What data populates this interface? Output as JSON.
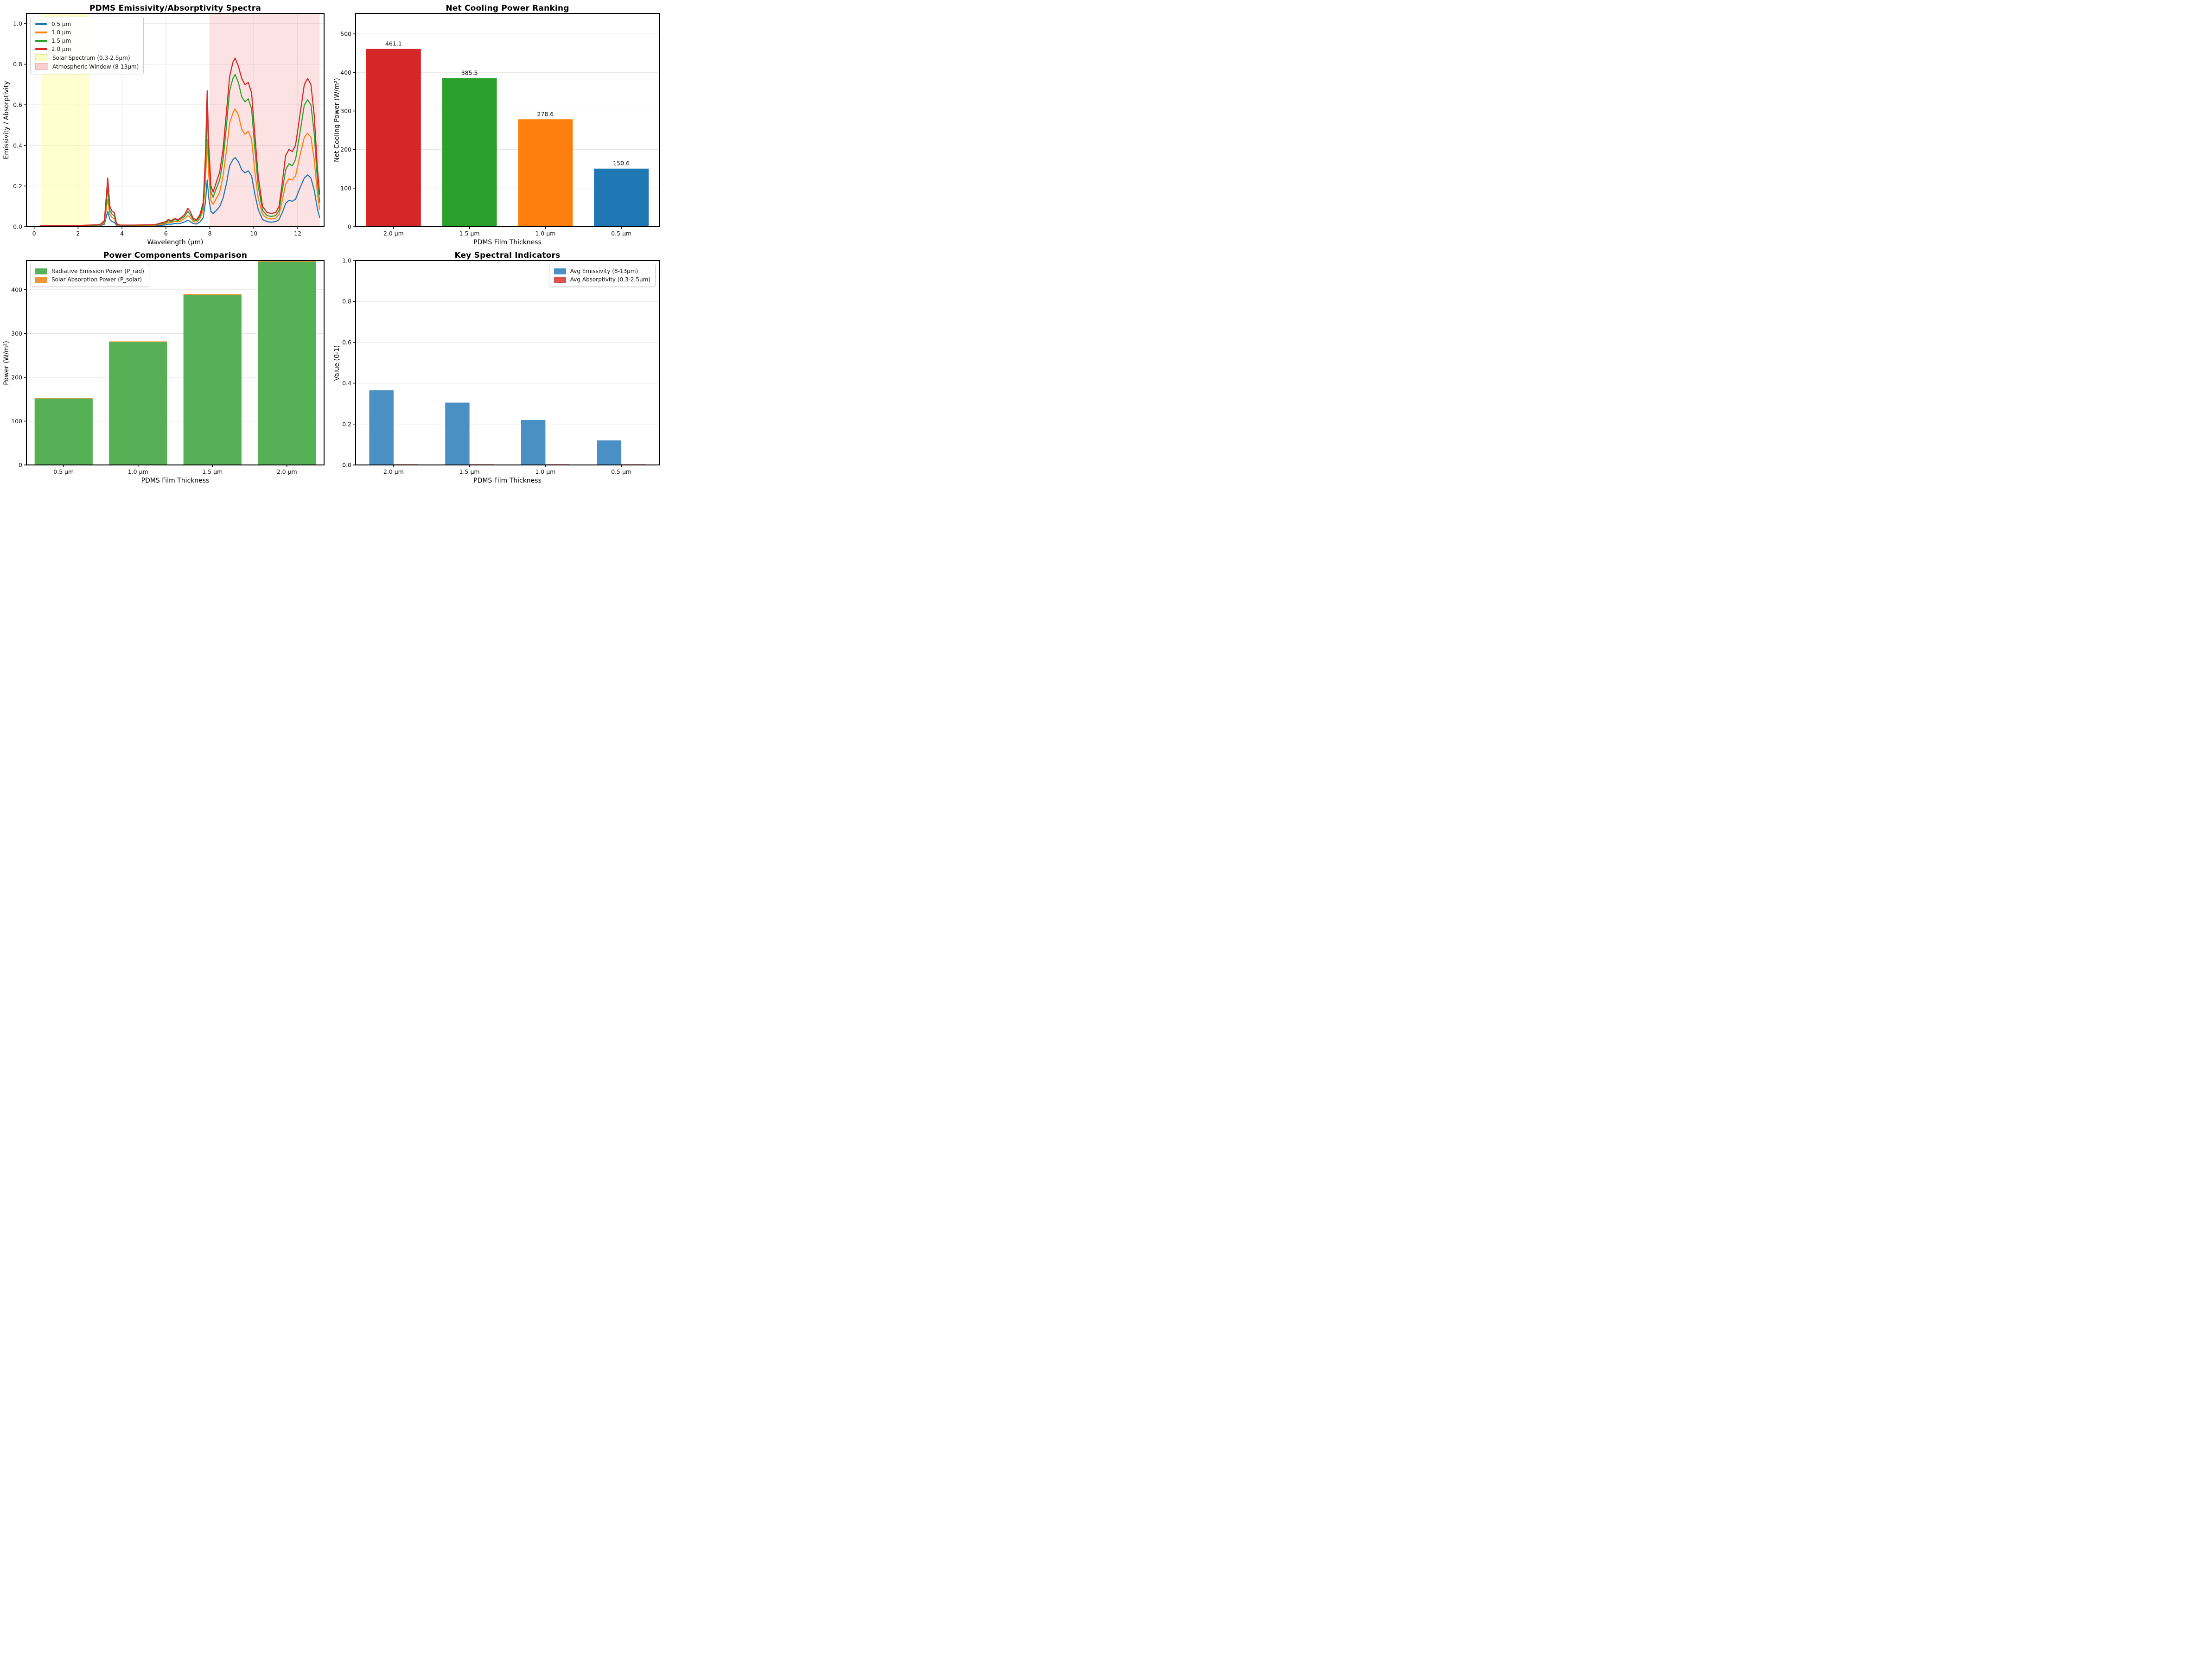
{
  "figure": {
    "background": "#ffffff",
    "accent_colors": {
      "tab_blue": "#1f77b4",
      "tab_orange": "#ff7f0e",
      "tab_green": "#2ca02c",
      "tab_red": "#d62728",
      "soft_green": "#55b056",
      "soft_orange": "#ee9537",
      "steel_blue": "#4a90c4",
      "soft_red": "#d9534f",
      "solar_band": "rgba(255,255,140,0.42)",
      "atmos_band": "rgba(236,93,93,0.18)"
    }
  },
  "chart_data": [
    {
      "id": "spectra",
      "type": "line",
      "title": "PDMS Emissivity/Absorptivity Spectra",
      "xlabel": "Wavelength (µm)",
      "ylabel": "Emissivity / Absorptivity",
      "xlim": [
        -0.35,
        13.2
      ],
      "ylim": [
        0,
        1.05
      ],
      "xticks": [
        0,
        2,
        4,
        6,
        8,
        10,
        12
      ],
      "xtick_labels": [
        "0",
        "2",
        "4",
        "6",
        "8",
        "10",
        "12"
      ],
      "yticks": [
        0.0,
        0.2,
        0.4,
        0.6,
        0.8,
        1.0
      ],
      "ytick_labels": [
        "0.0",
        "0.2",
        "0.4",
        "0.6",
        "0.8",
        "1.0"
      ],
      "grid": "both",
      "legend_position": "top-left",
      "bands": [
        {
          "label": "Solar Spectrum (0.3-2.5µm)",
          "from": 0.3,
          "to": 2.5,
          "color": "rgba(255,255,140,0.42)",
          "legend_fill": "#fbfbc8",
          "legend_edge": "#e8e89a"
        },
        {
          "label": "Atmospheric Window (8-13µm)",
          "from": 8,
          "to": 13,
          "color": "rgba(236,93,93,0.18)",
          "legend_fill": "#f8d0d4",
          "legend_edge": "#eba6ab"
        }
      ],
      "x": [
        0.3,
        1.0,
        2.0,
        3.0,
        3.2,
        3.35,
        3.45,
        3.55,
        3.65,
        3.75,
        3.9,
        4.5,
        5.0,
        5.5,
        6.0,
        6.1,
        6.25,
        6.4,
        6.55,
        6.7,
        6.85,
        7.0,
        7.1,
        7.25,
        7.4,
        7.55,
        7.7,
        7.8,
        7.88,
        7.95,
        8.05,
        8.15,
        8.3,
        8.45,
        8.6,
        8.75,
        8.9,
        9.05,
        9.15,
        9.3,
        9.45,
        9.6,
        9.75,
        9.9,
        10.05,
        10.2,
        10.4,
        10.6,
        10.8,
        11.0,
        11.15,
        11.3,
        11.45,
        11.6,
        11.75,
        11.9,
        12.1,
        12.3,
        12.45,
        12.6,
        12.75,
        12.9,
        13.0
      ],
      "series": [
        {
          "name": "0.5 µm",
          "color": "#1f77b4",
          "values": [
            0.001,
            0.002,
            0.002,
            0.004,
            0.012,
            0.075,
            0.035,
            0.025,
            0.022,
            0.006,
            0.004,
            0.004,
            0.004,
            0.005,
            0.009,
            0.013,
            0.012,
            0.016,
            0.014,
            0.018,
            0.023,
            0.032,
            0.026,
            0.015,
            0.013,
            0.023,
            0.045,
            0.12,
            0.23,
            0.14,
            0.075,
            0.065,
            0.08,
            0.1,
            0.14,
            0.21,
            0.3,
            0.33,
            0.34,
            0.32,
            0.28,
            0.265,
            0.275,
            0.25,
            0.16,
            0.085,
            0.035,
            0.025,
            0.022,
            0.025,
            0.035,
            0.07,
            0.115,
            0.13,
            0.125,
            0.135,
            0.19,
            0.24,
            0.255,
            0.24,
            0.18,
            0.085,
            0.045
          ]
        },
        {
          "name": "1.0 µm",
          "color": "#ff7f0e",
          "values": [
            0.002,
            0.003,
            0.004,
            0.006,
            0.02,
            0.135,
            0.06,
            0.045,
            0.04,
            0.01,
            0.006,
            0.006,
            0.006,
            0.007,
            0.015,
            0.022,
            0.02,
            0.027,
            0.023,
            0.03,
            0.04,
            0.055,
            0.045,
            0.025,
            0.022,
            0.04,
            0.08,
            0.22,
            0.43,
            0.25,
            0.13,
            0.11,
            0.14,
            0.17,
            0.25,
            0.37,
            0.51,
            0.56,
            0.58,
            0.55,
            0.48,
            0.455,
            0.47,
            0.43,
            0.27,
            0.14,
            0.06,
            0.042,
            0.038,
            0.042,
            0.06,
            0.13,
            0.21,
            0.235,
            0.23,
            0.25,
            0.35,
            0.44,
            0.46,
            0.44,
            0.33,
            0.16,
            0.085
          ]
        },
        {
          "name": "1.5 µm",
          "color": "#2ca02c",
          "values": [
            0.003,
            0.004,
            0.005,
            0.008,
            0.025,
            0.19,
            0.08,
            0.06,
            0.055,
            0.012,
            0.007,
            0.007,
            0.008,
            0.009,
            0.02,
            0.03,
            0.025,
            0.035,
            0.03,
            0.04,
            0.05,
            0.075,
            0.06,
            0.033,
            0.03,
            0.05,
            0.1,
            0.3,
            0.57,
            0.34,
            0.17,
            0.145,
            0.19,
            0.23,
            0.33,
            0.49,
            0.67,
            0.73,
            0.75,
            0.71,
            0.64,
            0.615,
            0.63,
            0.58,
            0.38,
            0.2,
            0.08,
            0.055,
            0.05,
            0.055,
            0.08,
            0.18,
            0.28,
            0.31,
            0.3,
            0.33,
            0.46,
            0.6,
            0.625,
            0.6,
            0.46,
            0.22,
            0.12
          ]
        },
        {
          "name": "2.0 µm",
          "color": "#d62728",
          "values": [
            0.004,
            0.005,
            0.006,
            0.01,
            0.03,
            0.24,
            0.1,
            0.075,
            0.07,
            0.015,
            0.008,
            0.008,
            0.009,
            0.01,
            0.025,
            0.035,
            0.03,
            0.04,
            0.035,
            0.045,
            0.06,
            0.09,
            0.075,
            0.04,
            0.035,
            0.06,
            0.12,
            0.35,
            0.67,
            0.4,
            0.2,
            0.17,
            0.22,
            0.27,
            0.38,
            0.56,
            0.74,
            0.81,
            0.83,
            0.79,
            0.73,
            0.7,
            0.71,
            0.66,
            0.45,
            0.25,
            0.1,
            0.07,
            0.065,
            0.07,
            0.1,
            0.22,
            0.35,
            0.38,
            0.37,
            0.4,
            0.55,
            0.7,
            0.73,
            0.7,
            0.55,
            0.28,
            0.16
          ]
        }
      ]
    },
    {
      "id": "ranking",
      "type": "bar",
      "title": "Net Cooling Power Ranking",
      "xlabel": "PDMS Film Thickness",
      "ylabel": "Net Cooling Power (W/m²)",
      "categories": [
        "2.0 µm",
        "1.5 µm",
        "1.0 µm",
        "0.5 µm"
      ],
      "values": [
        461.1,
        385.5,
        278.6,
        150.6
      ],
      "value_labels": [
        "461.1",
        "385.5",
        "278.6",
        "150.6"
      ],
      "bar_colors": [
        "#d62728",
        "#2ca02c",
        "#ff7f0e",
        "#1f77b4"
      ],
      "bar_width": 0.72,
      "ylim": [
        0,
        553
      ],
      "yticks": [
        0,
        100,
        200,
        300,
        400,
        500
      ],
      "ytick_labels": [
        "0",
        "100",
        "200",
        "300",
        "400",
        "500"
      ],
      "grid": "y"
    },
    {
      "id": "components",
      "type": "stacked-bar",
      "title": "Power Components Comparison",
      "xlabel": "PDMS Film Thickness",
      "ylabel": "Power (W/m²)",
      "categories": [
        "0.5 µm",
        "1.0 µm",
        "1.5 µm",
        "2.0 µm"
      ],
      "series": [
        {
          "name": "Radiative Emission Power (P_rad)",
          "color": "#55b056",
          "values": [
            151.7,
            280.3,
            387.7,
            463.8
          ]
        },
        {
          "name": "Solar Absorption Power (P_solar)",
          "color": "#ee9537",
          "values": [
            1.1,
            1.7,
            2.2,
            2.7
          ]
        }
      ],
      "bar_width": 0.78,
      "ylim": [
        0,
        466.5
      ],
      "yticks": [
        0,
        100,
        200,
        300,
        400
      ],
      "ytick_labels": [
        "0",
        "100",
        "200",
        "300",
        "400"
      ],
      "grid": "y",
      "legend_position": "top-left"
    },
    {
      "id": "indicators",
      "type": "grouped-bar",
      "title": "Key Spectral Indicators",
      "xlabel": "PDMS Film Thickness",
      "ylabel": "Value (0-1)",
      "categories": [
        "2.0 µm",
        "1.5 µm",
        "1.0 µm",
        "0.5 µm"
      ],
      "series": [
        {
          "name": "Avg Emissivity (8-13µm)",
          "color": "#4a90c4",
          "values": [
            0.365,
            0.305,
            0.22,
            0.12
          ]
        },
        {
          "name": "Avg Absorptivity (0.3-2.5µm)",
          "color": "#d9534f",
          "values": [
            0.002,
            0.002,
            0.002,
            0.002
          ]
        }
      ],
      "bar_width": 0.32,
      "ylim": [
        0,
        1.0
      ],
      "yticks": [
        0.0,
        0.2,
        0.4,
        0.6,
        0.8,
        1.0
      ],
      "ytick_labels": [
        "0.0",
        "0.2",
        "0.4",
        "0.6",
        "0.8",
        "1.0"
      ],
      "grid": "y",
      "legend_position": "top-right"
    }
  ]
}
